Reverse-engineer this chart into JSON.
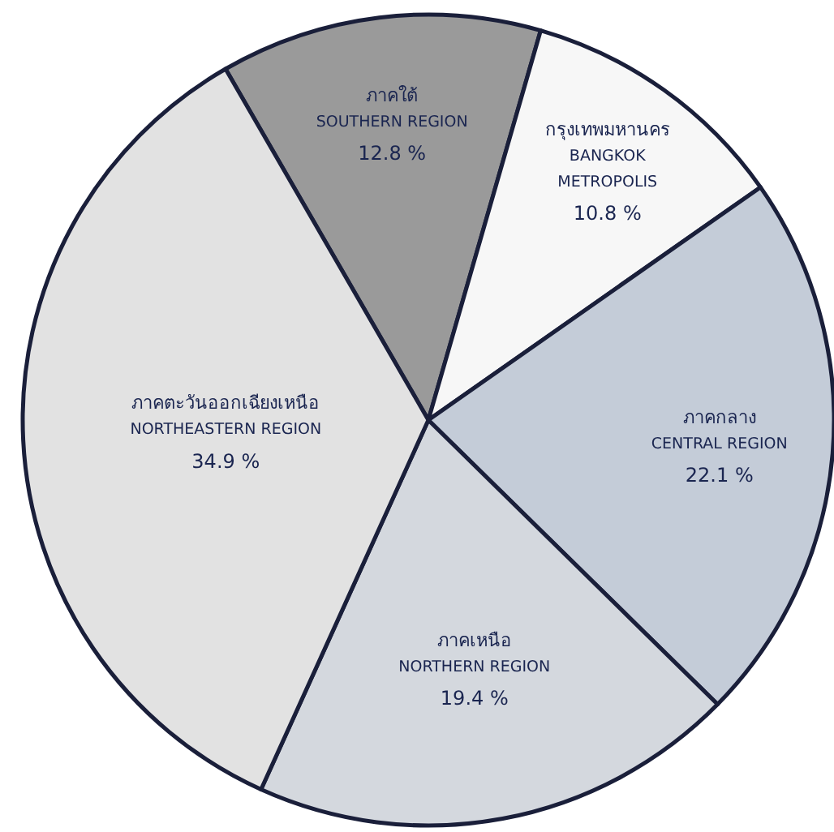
{
  "chart_data": {
    "type": "pie",
    "categories": [
      "ภาคใต้\nSOUTHERN REGION",
      "กรุงเทพมหานคร\nBANGKOK\nMETROPOLIS",
      "ภาคกลาง\nCENTRAL REGION",
      "ภาคเหนือ\nNORTHERN REGION",
      "ภาคตะวันออกเฉียงเหนือ\nNORTHEASTERN REGION"
    ],
    "values": [
      12.8,
      10.8,
      22.1,
      19.4,
      34.9
    ],
    "value_labels": [
      "12.8 %",
      "10.8 %",
      "22.1 %",
      "19.4 %",
      "34.9 %"
    ],
    "colors": [
      "#9a9a9a",
      "#f7f7f7",
      "#c4ccd8",
      "#d4d8de",
      "#e2e2e2"
    ]
  }
}
